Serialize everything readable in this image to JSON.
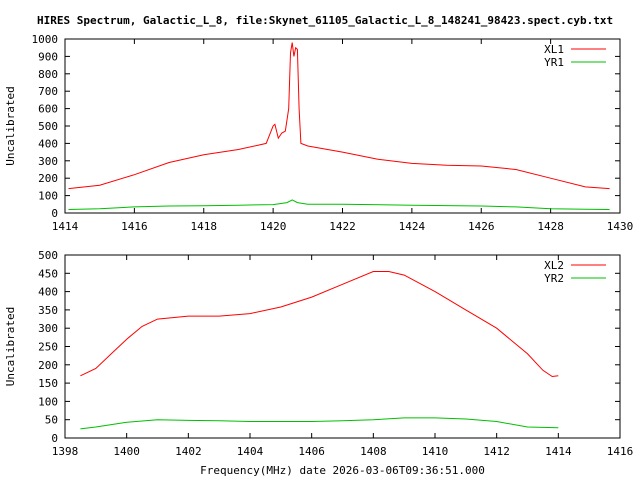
{
  "chart_data": [
    {
      "type": "line",
      "title": "HIRES Spectrum, Galactic_L_8, file:Skynet_61105_Galactic_L_8_148241_98423.spect.cyb.txt",
      "xlabel": "",
      "ylabel": "Uncalibrated",
      "xlim": [
        1414,
        1430
      ],
      "ylim": [
        0,
        1000
      ],
      "xticks": [
        1414,
        1416,
        1418,
        1420,
        1422,
        1424,
        1426,
        1428,
        1430
      ],
      "yticks": [
        0,
        100,
        200,
        300,
        400,
        500,
        600,
        700,
        800,
        900,
        1000
      ],
      "legend": "top-right",
      "series": [
        {
          "name": "XL1",
          "color": "#ff0000",
          "x": [
            1414.1,
            1415,
            1416,
            1417,
            1418,
            1419,
            1419.8,
            1420.0,
            1420.05,
            1420.15,
            1420.25,
            1420.35,
            1420.45,
            1420.5,
            1420.55,
            1420.6,
            1420.65,
            1420.7,
            1420.75,
            1420.8,
            1421,
            1422,
            1423,
            1424,
            1425,
            1426,
            1427,
            1428,
            1429,
            1429.7
          ],
          "y": [
            140,
            160,
            220,
            290,
            335,
            365,
            400,
            500,
            510,
            430,
            460,
            470,
            600,
            920,
            980,
            900,
            950,
            940,
            600,
            400,
            385,
            350,
            310,
            285,
            275,
            270,
            250,
            200,
            150,
            140
          ]
        },
        {
          "name": "YR1",
          "color": "#00c000",
          "x": [
            1414.1,
            1415,
            1416,
            1417,
            1418,
            1419,
            1420,
            1420.4,
            1420.55,
            1420.7,
            1421,
            1422,
            1424,
            1426,
            1427,
            1428,
            1429,
            1429.7
          ],
          "y": [
            20,
            25,
            35,
            40,
            42,
            45,
            48,
            60,
            75,
            60,
            50,
            50,
            45,
            40,
            35,
            25,
            22,
            20
          ]
        }
      ]
    },
    {
      "type": "line",
      "title": "",
      "xlabel": "Frequency(MHz) date 2026-03-06T09:36:51.000",
      "ylabel": "Uncalibrated",
      "xlim": [
        1398,
        1416
      ],
      "ylim": [
        0,
        500
      ],
      "xticks": [
        1398,
        1400,
        1402,
        1404,
        1406,
        1408,
        1410,
        1412,
        1414,
        1416
      ],
      "yticks": [
        0,
        50,
        100,
        150,
        200,
        250,
        300,
        350,
        400,
        450,
        500
      ],
      "legend": "top-right",
      "series": [
        {
          "name": "XL2",
          "color": "#ff0000",
          "x": [
            1398.5,
            1399,
            1399.5,
            1400,
            1400.5,
            1401,
            1402,
            1403,
            1404,
            1405,
            1406,
            1407,
            1408,
            1408.5,
            1409,
            1410,
            1411,
            1412,
            1413,
            1413.5,
            1413.8,
            1414
          ],
          "y": [
            170,
            190,
            230,
            270,
            305,
            325,
            333,
            333,
            340,
            358,
            385,
            420,
            455,
            455,
            445,
            400,
            350,
            300,
            230,
            185,
            168,
            170
          ]
        },
        {
          "name": "YR2",
          "color": "#00c000",
          "x": [
            1398.5,
            1399,
            1400,
            1401,
            1402,
            1403,
            1404,
            1405,
            1406,
            1407,
            1408,
            1409,
            1410,
            1411,
            1412,
            1413,
            1414
          ],
          "y": [
            25,
            30,
            43,
            50,
            48,
            47,
            45,
            45,
            45,
            47,
            50,
            55,
            55,
            52,
            45,
            30,
            28
          ]
        }
      ]
    }
  ]
}
